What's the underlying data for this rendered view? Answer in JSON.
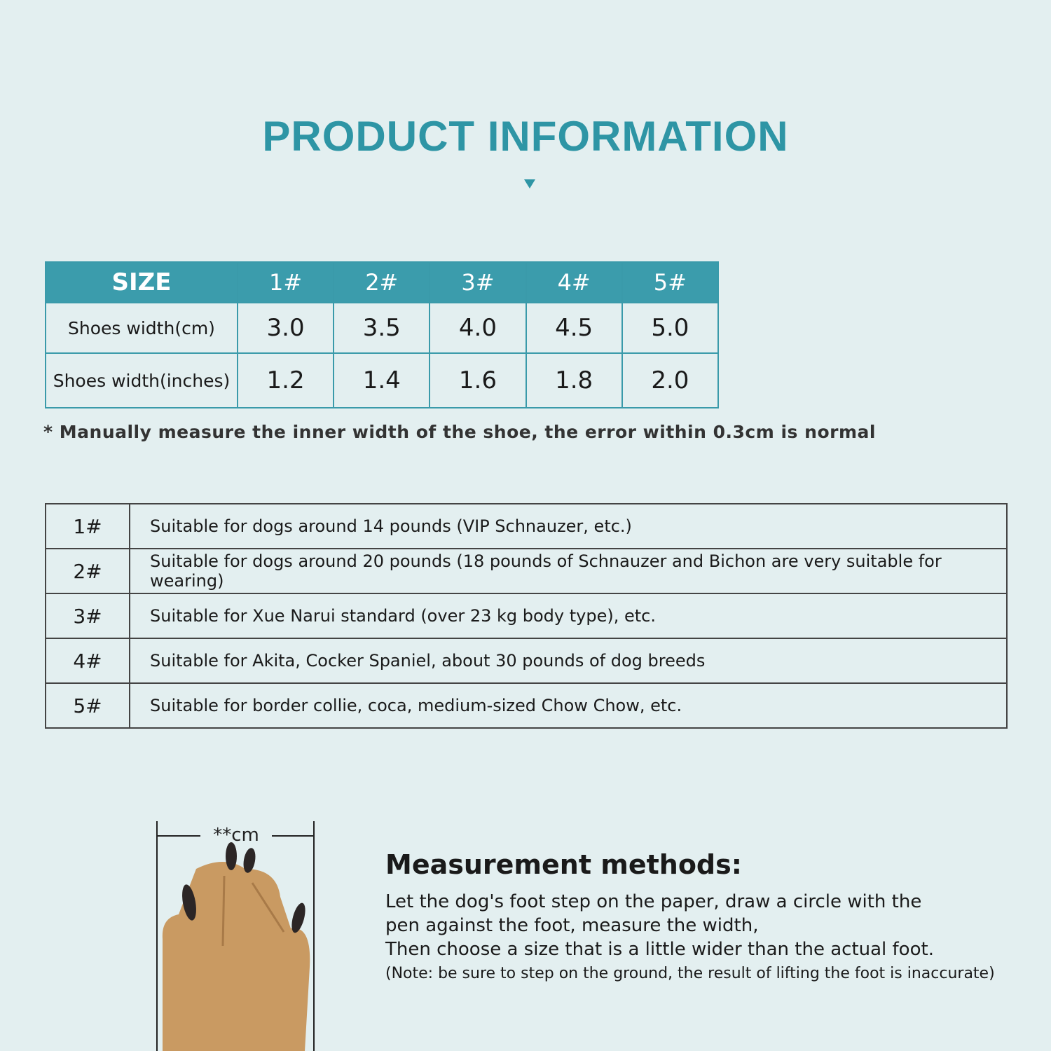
{
  "title": "PRODUCT INFORMATION",
  "colors": {
    "accent": "#2e95a5",
    "header_bg": "#3b9cac",
    "background": "#e3eff0"
  },
  "size_table": {
    "headers": [
      "SIZE",
      "1#",
      "2#",
      "3#",
      "4#",
      "5#"
    ],
    "rows": [
      {
        "label": "Shoes width(cm)",
        "values": [
          "3.0",
          "3.5",
          "4.0",
          "4.5",
          "5.0"
        ]
      },
      {
        "label": "Shoes width(inches)",
        "values": [
          "1.2",
          "1.4",
          "1.6",
          "1.8",
          "2.0"
        ]
      }
    ]
  },
  "note": "* Manually measure the inner width of the shoe, the error within 0.3cm is normal",
  "suitability": [
    {
      "size": "1#",
      "text": "Suitable for dogs around 14 pounds (VIP Schnauzer, etc.)"
    },
    {
      "size": "2#",
      "text": "Suitable for dogs around 20 pounds (18 pounds of Schnauzer and Bichon are very suitable for wearing)"
    },
    {
      "size": "3#",
      "text": "Suitable for Xue Narui standard (over 23 kg body type), etc."
    },
    {
      "size": "4#",
      "text": "Suitable for Akita, Cocker Spaniel, about 30 pounds of dog breeds"
    },
    {
      "size": "5#",
      "text": "Suitable for border collie, coca, medium-sized Chow Chow, etc."
    }
  ],
  "measure": {
    "width_label": "**cm",
    "title": "Measurement methods:",
    "lines": [
      "Let the dog's foot step on the paper, draw a circle with the",
      "pen against the foot, measure the width,",
      "Then choose a size that is a little wider than the actual foot."
    ],
    "note": "(Note: be sure to step on the ground, the result of lifting the foot is inaccurate)"
  }
}
